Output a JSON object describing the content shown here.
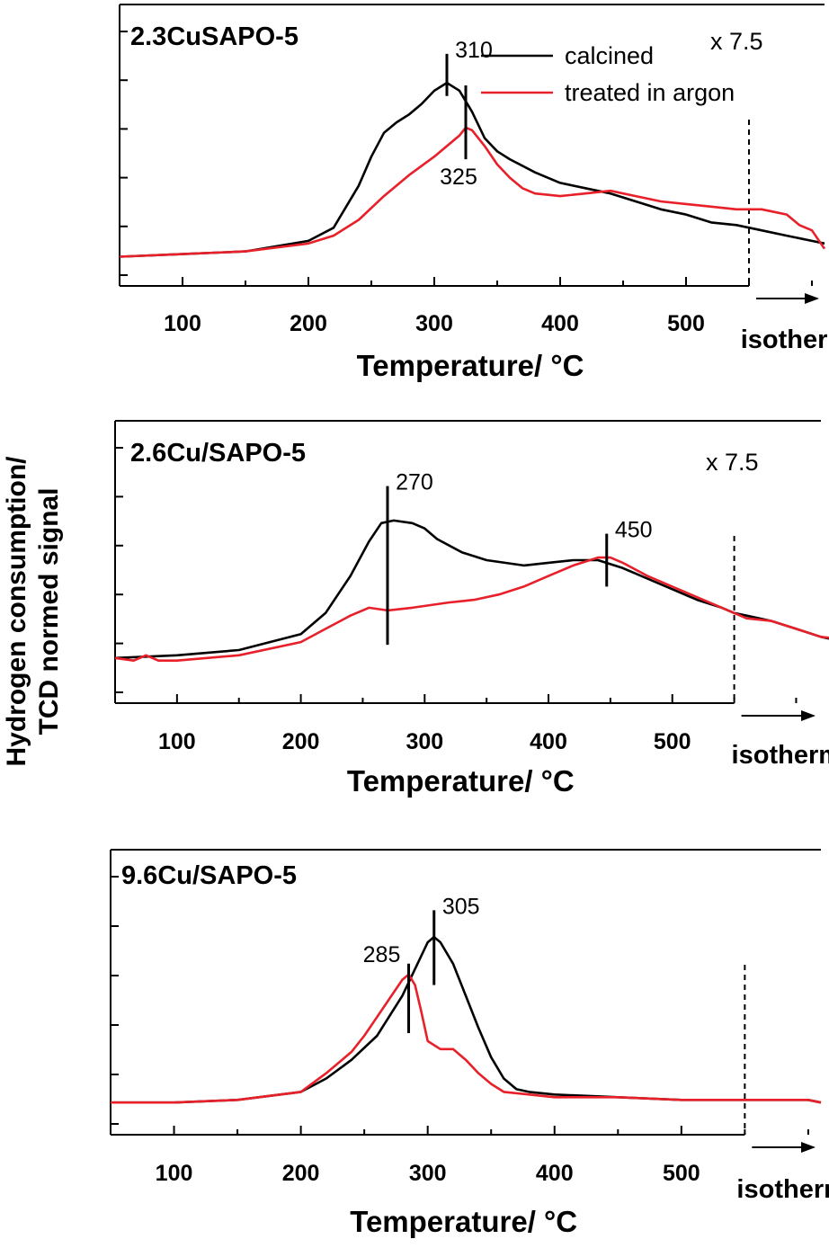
{
  "y_axis_title": {
    "line1": "Hydrogen consumption/",
    "line2": "TCD normed signal"
  },
  "colors": {
    "calcined": "#000000",
    "argon": "#e8202a"
  },
  "legend": {
    "calcined": "calcined",
    "argon": "treated in argon"
  },
  "chart_data": [
    {
      "type": "line",
      "panel_label": "2.3CuSAPO-5",
      "multiplier": "x 7.5",
      "xlabel": "Temperature/ °C",
      "xlim": [
        50,
        610
      ],
      "xticks": [
        100,
        200,
        300,
        400,
        500
      ],
      "isotherm_label": "isotherm",
      "isotherm_start": 550,
      "ylim": [
        0,
        100
      ],
      "series": [
        {
          "name": "calcined",
          "points": [
            [
              50,
              7
            ],
            [
              100,
              8
            ],
            [
              150,
              9
            ],
            [
              200,
              13
            ],
            [
              220,
              18
            ],
            [
              240,
              34
            ],
            [
              250,
              45
            ],
            [
              260,
              54
            ],
            [
              270,
              58
            ],
            [
              280,
              61
            ],
            [
              290,
              65
            ],
            [
              300,
              70
            ],
            [
              310,
              73
            ],
            [
              320,
              70
            ],
            [
              330,
              62
            ],
            [
              340,
              52
            ],
            [
              350,
              47
            ],
            [
              360,
              44
            ],
            [
              380,
              39
            ],
            [
              400,
              35
            ],
            [
              420,
              33
            ],
            [
              440,
              31
            ],
            [
              460,
              28
            ],
            [
              480,
              25
            ],
            [
              500,
              23
            ],
            [
              520,
              20
            ],
            [
              540,
              19
            ],
            [
              560,
              17
            ],
            [
              580,
              15
            ],
            [
              600,
              13
            ],
            [
              610,
              12
            ]
          ]
        },
        {
          "name": "treated in argon",
          "points": [
            [
              50,
              7
            ],
            [
              100,
              8
            ],
            [
              150,
              9
            ],
            [
              200,
              12
            ],
            [
              220,
              15
            ],
            [
              240,
              21
            ],
            [
              260,
              30
            ],
            [
              280,
              38
            ],
            [
              300,
              45
            ],
            [
              320,
              53
            ],
            [
              325,
              56
            ],
            [
              330,
              55
            ],
            [
              340,
              49
            ],
            [
              350,
              42
            ],
            [
              360,
              37
            ],
            [
              370,
              33
            ],
            [
              380,
              31
            ],
            [
              400,
              30
            ],
            [
              420,
              31
            ],
            [
              440,
              32
            ],
            [
              460,
              30
            ],
            [
              480,
              28
            ],
            [
              500,
              27
            ],
            [
              520,
              26
            ],
            [
              540,
              25
            ],
            [
              560,
              25
            ],
            [
              570,
              24
            ],
            [
              580,
              23
            ],
            [
              590,
              19
            ],
            [
              600,
              17
            ],
            [
              610,
              10
            ]
          ]
        }
      ],
      "markers": [
        {
          "x": 310,
          "y_from": 68,
          "y_to": 84,
          "label": "310"
        },
        {
          "x": 325,
          "y_from": 44,
          "y_to": 72,
          "label": "325"
        }
      ]
    },
    {
      "type": "line",
      "panel_label": "2.6Cu/SAPO-5",
      "multiplier": "x 7.5",
      "xlabel": "Temperature/ °C",
      "xlim": [
        50,
        620
      ],
      "xticks": [
        100,
        200,
        300,
        400,
        500
      ],
      "isotherm_label": "isotherm",
      "isotherm_start": 550,
      "ylim": [
        0,
        100
      ],
      "series": [
        {
          "name": "calcined",
          "points": [
            [
              50,
              13
            ],
            [
              100,
              14
            ],
            [
              150,
              16
            ],
            [
              200,
              22
            ],
            [
              220,
              30
            ],
            [
              240,
              44
            ],
            [
              255,
              57
            ],
            [
              265,
              64
            ],
            [
              275,
              65
            ],
            [
              290,
              64
            ],
            [
              300,
              62
            ],
            [
              310,
              58
            ],
            [
              330,
              53
            ],
            [
              350,
              50
            ],
            [
              380,
              48
            ],
            [
              400,
              49
            ],
            [
              420,
              50
            ],
            [
              440,
              50
            ],
            [
              460,
              47
            ],
            [
              480,
              43
            ],
            [
              500,
              39
            ],
            [
              520,
              35
            ],
            [
              540,
              32
            ],
            [
              550,
              30
            ],
            [
              560,
              29
            ],
            [
              580,
              27
            ],
            [
              600,
              24
            ],
            [
              620,
              21
            ],
            [
              640,
              19
            ],
            [
              665,
              18
            ]
          ]
        },
        {
          "name": "treated in argon",
          "points": [
            [
              50,
              13
            ],
            [
              65,
              12
            ],
            [
              75,
              14
            ],
            [
              85,
              12
            ],
            [
              100,
              12
            ],
            [
              150,
              14
            ],
            [
              200,
              19
            ],
            [
              220,
              24
            ],
            [
              240,
              29
            ],
            [
              255,
              32
            ],
            [
              270,
              31
            ],
            [
              290,
              32
            ],
            [
              320,
              34
            ],
            [
              340,
              35
            ],
            [
              360,
              37
            ],
            [
              380,
              40
            ],
            [
              400,
              44
            ],
            [
              420,
              48
            ],
            [
              440,
              51
            ],
            [
              450,
              51
            ],
            [
              460,
              49
            ],
            [
              480,
              44
            ],
            [
              500,
              40
            ],
            [
              520,
              36
            ],
            [
              540,
              32
            ],
            [
              560,
              28
            ],
            [
              580,
              27
            ],
            [
              600,
              24
            ],
            [
              620,
              21
            ],
            [
              640,
              20
            ],
            [
              655,
              19
            ],
            [
              660,
              14
            ],
            [
              670,
              14
            ],
            [
              680,
              14
            ],
            [
              690,
              14
            ],
            [
              700,
              14
            ]
          ]
        }
      ],
      "markers": [
        {
          "x": 270,
          "y_from": 18,
          "y_to": 78,
          "label": "270"
        },
        {
          "x": 447,
          "y_from": 40,
          "y_to": 60,
          "label": "450"
        }
      ]
    },
    {
      "type": "line",
      "panel_label": "9.6Cu/SAPO-5",
      "multiplier": "",
      "xlabel": "Temperature/ °C",
      "xlim": [
        50,
        610
      ],
      "xticks": [
        100,
        200,
        300,
        400,
        500
      ],
      "isotherm_label": "isotherm",
      "isotherm_start": 550,
      "ylim": [
        0,
        100
      ],
      "series": [
        {
          "name": "calcined",
          "points": [
            [
              50,
              8
            ],
            [
              100,
              8
            ],
            [
              150,
              9
            ],
            [
              200,
              12
            ],
            [
              220,
              17
            ],
            [
              240,
              24
            ],
            [
              260,
              33
            ],
            [
              280,
              48
            ],
            [
              290,
              58
            ],
            [
              300,
              68
            ],
            [
              305,
              70
            ],
            [
              310,
              68
            ],
            [
              320,
              60
            ],
            [
              330,
              48
            ],
            [
              340,
              36
            ],
            [
              350,
              25
            ],
            [
              360,
              17
            ],
            [
              370,
              13
            ],
            [
              380,
              12
            ],
            [
              400,
              11
            ],
            [
              450,
              10
            ],
            [
              500,
              9
            ],
            [
              550,
              9
            ],
            [
              600,
              9
            ],
            [
              610,
              8
            ]
          ]
        },
        {
          "name": "treated in argon",
          "points": [
            [
              50,
              8
            ],
            [
              100,
              8
            ],
            [
              150,
              9
            ],
            [
              200,
              12
            ],
            [
              220,
              19
            ],
            [
              240,
              27
            ],
            [
              250,
              33
            ],
            [
              260,
              40
            ],
            [
              270,
              47
            ],
            [
              280,
              54
            ],
            [
              285,
              56
            ],
            [
              290,
              52
            ],
            [
              295,
              42
            ],
            [
              300,
              31
            ],
            [
              310,
              28
            ],
            [
              320,
              28
            ],
            [
              330,
              24
            ],
            [
              340,
              19
            ],
            [
              350,
              15
            ],
            [
              360,
              12
            ],
            [
              380,
              11
            ],
            [
              400,
              10
            ],
            [
              450,
              10
            ],
            [
              500,
              9
            ],
            [
              550,
              9
            ],
            [
              600,
              9
            ],
            [
              610,
              8
            ]
          ]
        }
      ],
      "markers": [
        {
          "x": 285,
          "y_from": 34,
          "y_to": 60,
          "label": "285"
        },
        {
          "x": 305,
          "y_from": 52,
          "y_to": 80,
          "label": "305"
        }
      ]
    }
  ]
}
